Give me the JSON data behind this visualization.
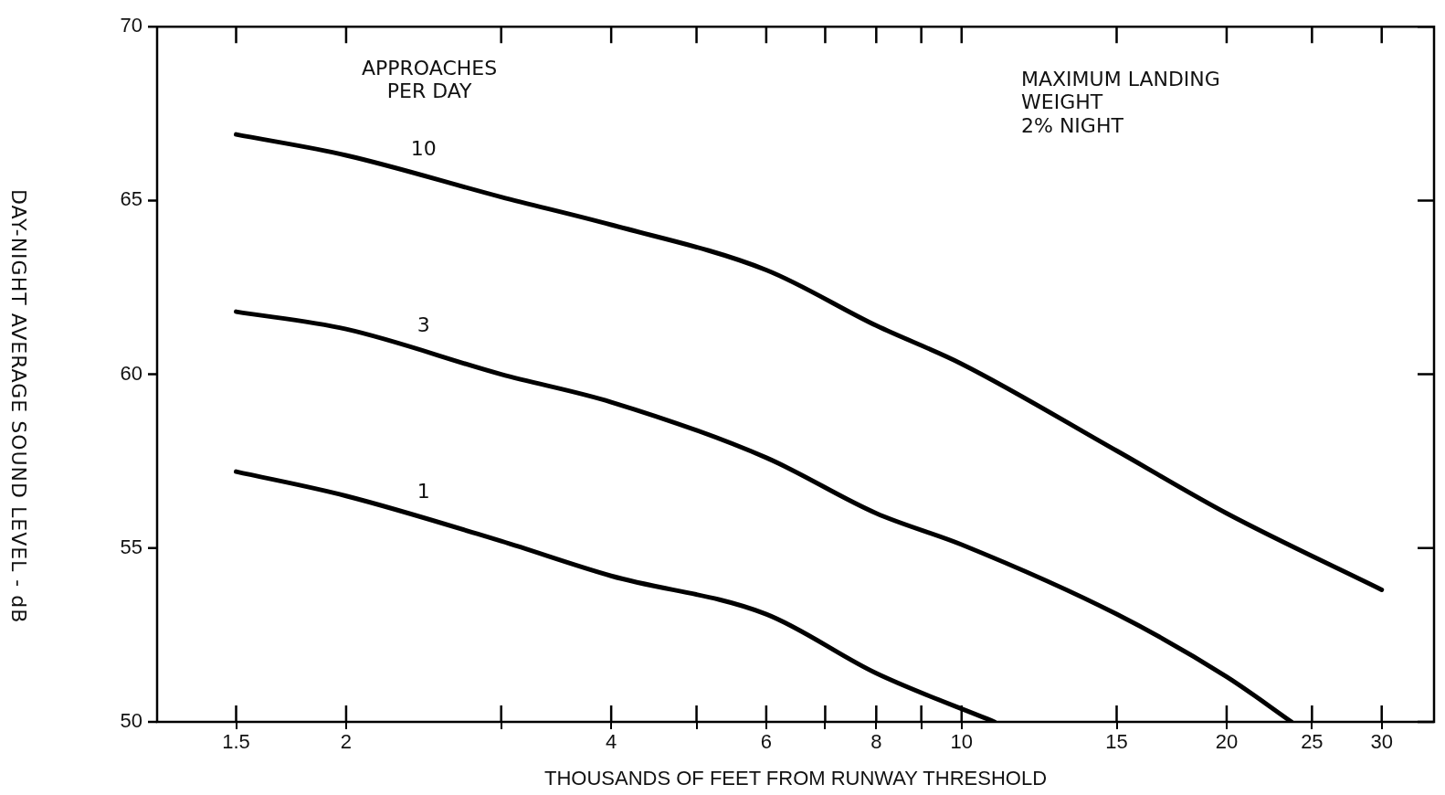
{
  "chart_data": {
    "type": "line",
    "xlabel": "THOUSANDS OF FEET FROM RUNWAY THRESHOLD",
    "ylabel": "DAY-NIGHT AVERAGE SOUND LEVEL - dB",
    "log": "x",
    "grid": false,
    "legend": false,
    "marker": "none",
    "line_style": "solid",
    "xlim": [
      1.22,
      34.4
    ],
    "ylim": [
      50,
      70
    ],
    "xticks": [
      1.5,
      2,
      {
        "value": 3,
        "label": null
      },
      4,
      {
        "value": 5,
        "label": null
      },
      6,
      {
        "value": 7,
        "label": null
      },
      8,
      {
        "value": 9,
        "label": null
      },
      10,
      15,
      20,
      25,
      30
    ],
    "yticks": [
      50,
      55,
      60,
      65,
      70
    ],
    "series": [
      {
        "name": "10",
        "color": "#000000",
        "x": [
          1.5,
          2,
          3,
          4,
          6,
          8,
          10,
          15,
          20,
          30
        ],
        "values": [
          66.9,
          66.3,
          65.1,
          64.3,
          63.0,
          61.4,
          60.3,
          57.8,
          56.0,
          53.8
        ]
      },
      {
        "name": "3",
        "color": "#000000",
        "x": [
          1.5,
          2,
          3,
          4,
          6,
          8,
          10,
          15,
          20,
          23.7
        ],
        "values": [
          61.8,
          61.3,
          60.0,
          59.2,
          57.6,
          56.0,
          55.1,
          53.1,
          51.3,
          50.0
        ]
      },
      {
        "name": "1",
        "color": "#000000",
        "x": [
          1.5,
          2,
          3,
          4,
          6,
          8,
          10.9
        ],
        "values": [
          57.2,
          56.5,
          55.2,
          54.2,
          53.1,
          51.4,
          50.0
        ]
      }
    ],
    "annotations": [
      "APPROACHES\nPER DAY",
      "MAXIMUM LANDING\nWEIGHT\n2% NIGHT"
    ]
  }
}
